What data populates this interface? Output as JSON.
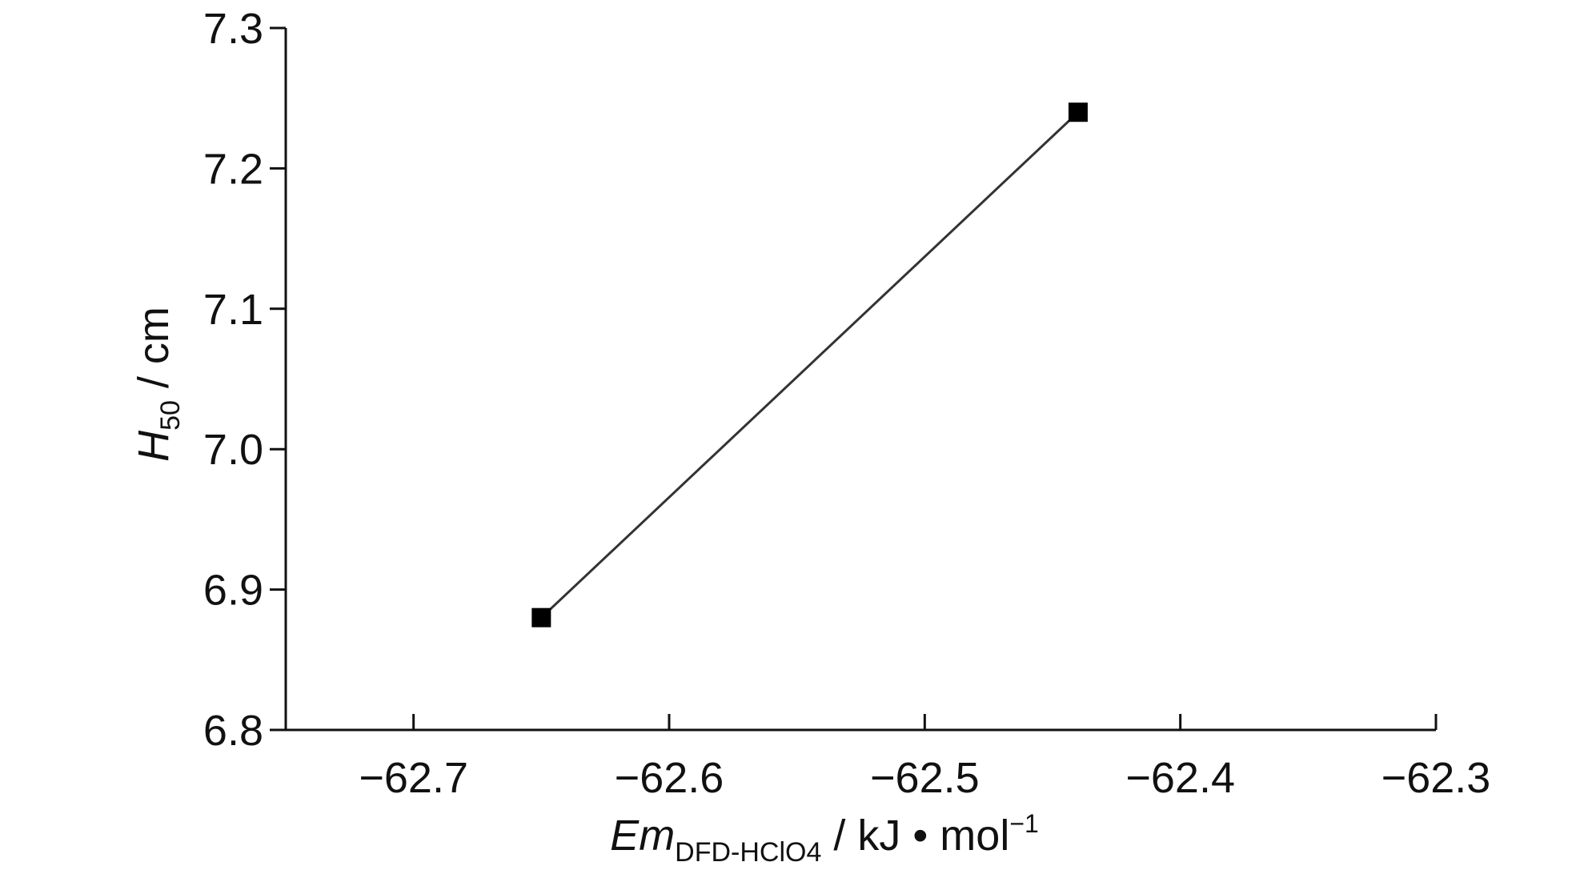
{
  "chart_data": {
    "type": "line",
    "title": "",
    "x": [
      -62.65,
      -62.44
    ],
    "series": [
      {
        "values": [
          6.88,
          7.24
        ],
        "color": "#000000"
      }
    ],
    "xlim": [
      -62.75,
      -62.3
    ],
    "ylim": [
      6.8,
      7.3
    ],
    "xticks": [
      -62.7,
      -62.6,
      -62.5,
      -62.4,
      -62.3
    ],
    "xtick_labels": [
      "−62.7",
      "−62.6",
      "−62.5",
      "−62.4",
      "−62.3"
    ],
    "yticks": [
      6.8,
      6.9,
      7.0,
      7.1,
      7.2,
      7.3
    ],
    "ytick_labels": [
      "6.8",
      "6.9",
      "7.0",
      "7.1",
      "7.2",
      "7.3"
    ],
    "xlabel": {
      "main": "Em",
      "subscript": "DFD-HClO4",
      "unit_prefix": " / kJ • mol",
      "superscript": "−1"
    },
    "ylabel": {
      "main": "H",
      "subscript": "50",
      "unit": " / cm"
    },
    "grid": false,
    "legend": "none",
    "marker": "square"
  }
}
